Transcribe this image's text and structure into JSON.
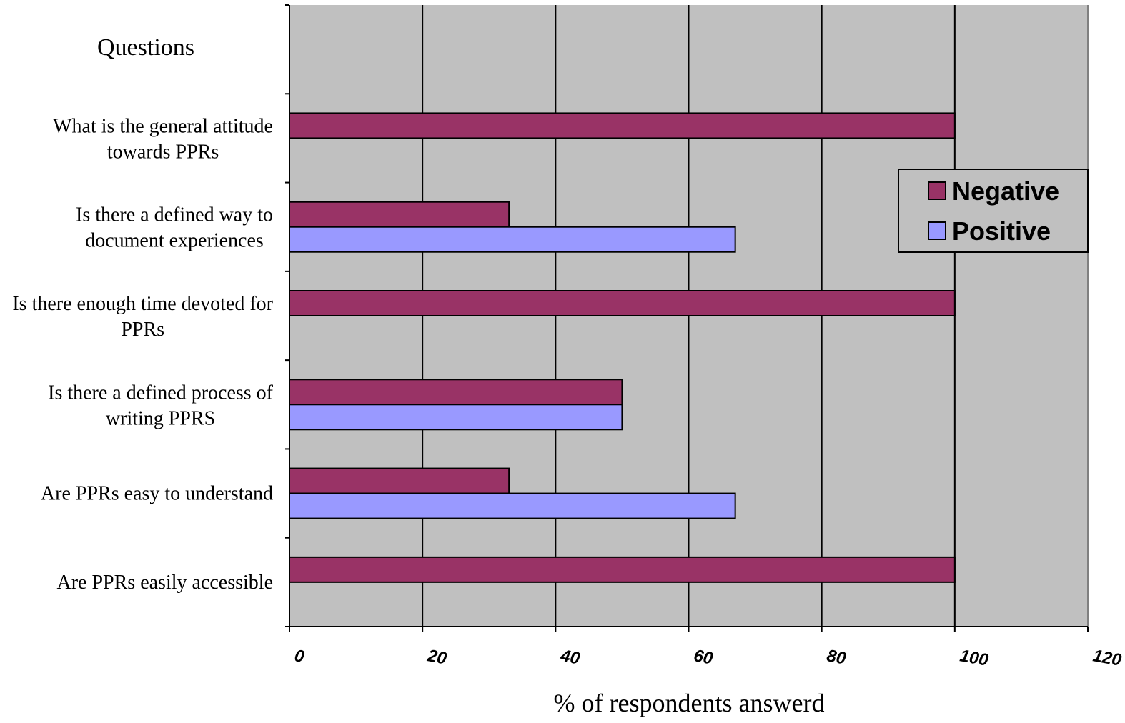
{
  "chart_data": {
    "type": "bar",
    "orientation": "horizontal",
    "title": "",
    "ylabel": "Questions",
    "xlabel": "% of respondents answerd",
    "xlim": [
      0,
      120
    ],
    "x_ticks": [
      "0",
      "20",
      "40",
      "60",
      "80",
      "100",
      "120"
    ],
    "grid": "vertical",
    "legend_position": "right",
    "categories": [
      [
        "What is the general attitude",
        "towards PPRs"
      ],
      [
        "Is there a defined way to",
        "document experiences"
      ],
      [
        "Is there enough time devoted for",
        "PPRs"
      ],
      [
        "Is there a defined process of",
        "writing PPRS"
      ],
      [
        "Are PPRs easy to understand"
      ],
      [
        "Are PPRs easily accessible"
      ]
    ],
    "series": [
      {
        "name": "Negative",
        "color": "#993366",
        "values": [
          100,
          33,
          100,
          50,
          33,
          100
        ]
      },
      {
        "name": "Positive",
        "color": "#9999FF",
        "values": [
          0,
          67,
          0,
          50,
          67,
          0
        ]
      }
    ],
    "plot_background": "#C0C0C0"
  }
}
